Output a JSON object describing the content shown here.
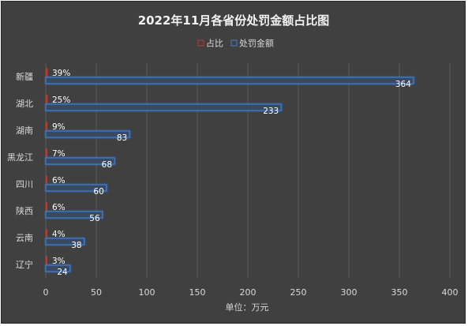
{
  "chart_data": {
    "type": "bar",
    "orientation": "horizontal",
    "title": "2022年11月各省份处罚金额占比图",
    "xlabel": "单位：万元",
    "ylabel": "",
    "categories": [
      "新疆",
      "湖北",
      "湖南",
      "黑龙江",
      "四川",
      "陕西",
      "云南",
      "辽宁"
    ],
    "series": [
      {
        "name": "占比",
        "values": [
          0.39,
          0.25,
          0.09,
          0.07,
          0.06,
          0.06,
          0.04,
          0.03
        ],
        "labels": [
          "39%",
          "25%",
          "9%",
          "7%",
          "6%",
          "6%",
          "4%",
          "3%"
        ],
        "color": "#c0392b"
      },
      {
        "name": "处罚金额",
        "values": [
          364,
          233,
          83,
          68,
          60,
          56,
          38,
          24
        ],
        "labels": [
          "364",
          "233",
          "83",
          "68",
          "60",
          "56",
          "38",
          "24"
        ],
        "color": "#3b7fd4"
      }
    ],
    "xlim": [
      0,
      400
    ],
    "xticks": [
      0,
      50,
      100,
      150,
      200,
      250,
      300,
      350,
      400
    ],
    "grid": true,
    "legend_position": "top"
  },
  "colors": {
    "background": "#404040",
    "grid": "#5a5a5a",
    "text": "#d9d9d9",
    "title": "#f2f2f2",
    "label": "#ffffff"
  }
}
